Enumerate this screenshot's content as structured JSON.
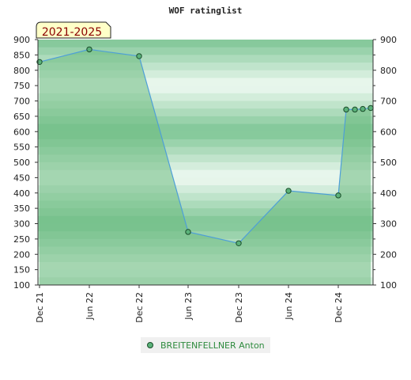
{
  "chart_data": {
    "type": "area",
    "title": "WOF ratinglist",
    "badge": "2021-2025",
    "y_ticks": [
      "100",
      "150",
      "200",
      "250",
      "300",
      "350",
      "400",
      "450",
      "500",
      "550",
      "600",
      "650",
      "700",
      "750",
      "800",
      "850",
      "900"
    ],
    "y_ticks_right": [
      "100",
      "200",
      "300",
      "400",
      "500",
      "600",
      "700",
      "800",
      "900"
    ],
    "x_ticks": [
      "Dec 21",
      "Jun 22",
      "Dec 22",
      "Jun 23",
      "Dec 23",
      "Jun 24",
      "Dec 24"
    ],
    "ylim": [
      100,
      900
    ],
    "grid": false,
    "legend_position": "bottom",
    "series": [
      {
        "name": "BREITENFELLNER Anton",
        "x": [
          "Dec 21",
          "Jun 22",
          "Dec 22",
          "Jun 23",
          "Dec 23",
          "Jun 24",
          "Dec 24",
          "Jan 25",
          "Feb 25",
          "Mar 25",
          "Apr 25"
        ],
        "values": [
          827,
          868,
          846,
          273,
          236,
          407,
          392,
          672,
          672,
          674,
          677
        ]
      }
    ],
    "colors": {
      "line": "#4e9fd8",
      "fill": "#6dbb82",
      "marker": "#5bb27a",
      "marker_edge": "#1a4d2a",
      "band_dark": "#7dc594",
      "band_light": "#f0faf3",
      "badge_bg": "#ffffc8",
      "badge_text": "#8b0000",
      "legend_text": "#2e8b3e",
      "legend_bg": "#f0f0f0"
    }
  }
}
